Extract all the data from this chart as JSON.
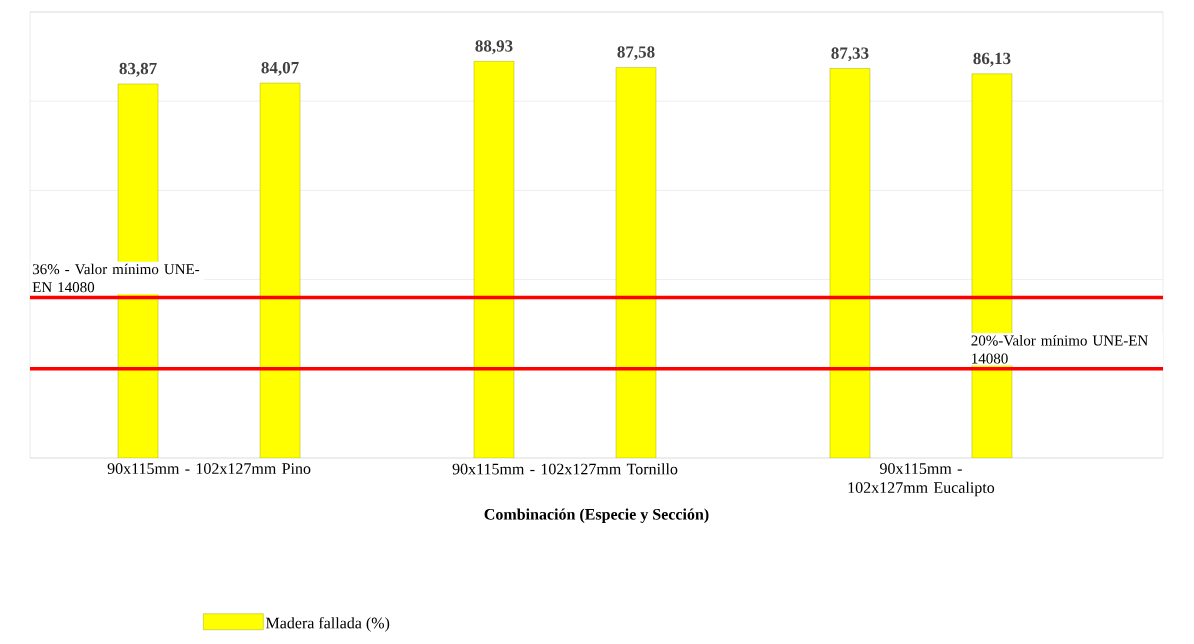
{
  "chart_data": {
    "type": "bar",
    "xlabel": "Combinación (Especie y Sección)",
    "categories": [
      "90x115mm - 102x127mm Pino",
      "90x115mm  - 102x127mm Tornillo",
      "90x115mm - 102x127mm Eucalipto"
    ],
    "series": [
      {
        "name": "Madera fallada (%)",
        "color": "#ffff00",
        "values": [
          83.87,
          88.93,
          87.33
        ],
        "value_labels": [
          "83,87",
          "88,93",
          "87,33"
        ]
      },
      {
        "color": "#ffff00",
        "values": [
          84.07,
          87.58,
          86.13
        ],
        "value_labels": [
          "84,07",
          "87,58",
          "86,13"
        ]
      }
    ],
    "ylim": [
      0,
      100
    ],
    "yticks": [
      {
        "value": 0,
        "label": null
      },
      {
        "value": 20,
        "label": null
      },
      {
        "value": 40,
        "label": null
      },
      {
        "value": 60,
        "label": null
      },
      {
        "value": 80,
        "label": null
      },
      {
        "value": 100,
        "label": null
      }
    ],
    "tick_labels": "x",
    "grid": "y",
    "legend": "bottom",
    "ref_lines": [
      {
        "axis": "y",
        "value": 36,
        "label": "36% - Valor mínimo UNE-EN 14080",
        "color": "#ff0000"
      },
      {
        "axis": "y",
        "value": 20,
        "label": "20%-Valor mínimo UNE-EN 14080",
        "color": "#ff0000"
      }
    ]
  }
}
